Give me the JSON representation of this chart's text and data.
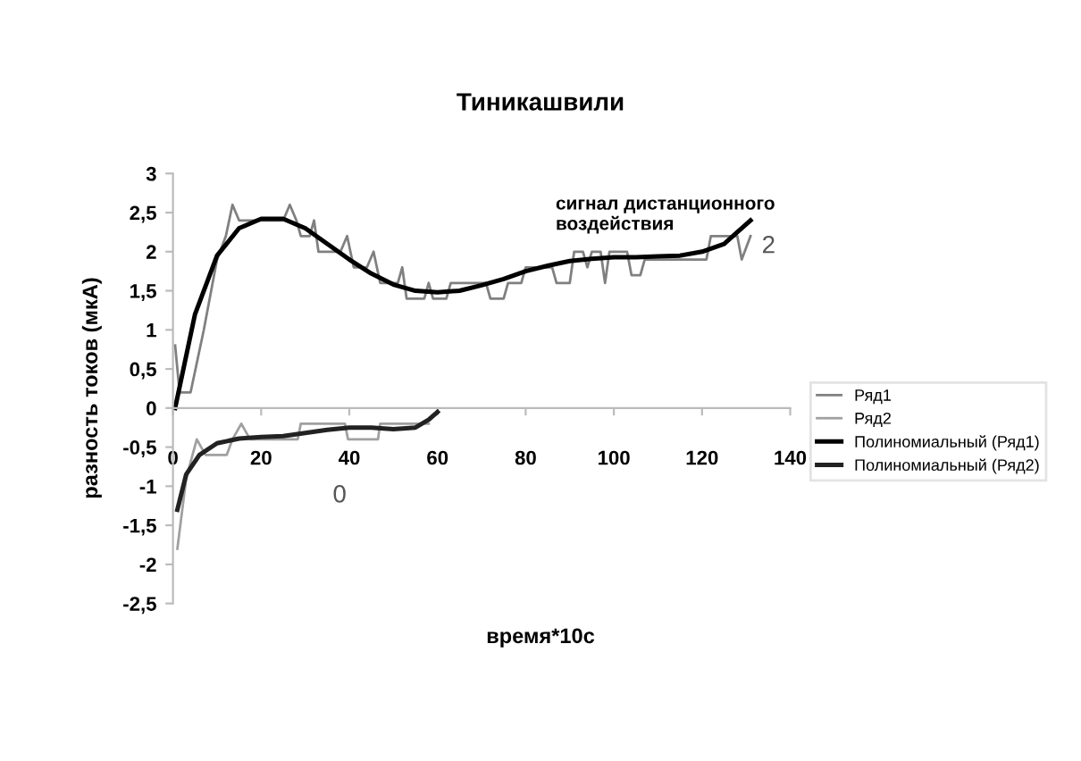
{
  "chart_data": {
    "type": "line",
    "title": "Тиникашвили",
    "xlabel": "время*10с",
    "ylabel": "разность токов (мкА)",
    "xlim": [
      0,
      140
    ],
    "xticks": [
      0,
      20,
      40,
      60,
      80,
      100,
      120,
      140
    ],
    "ylim": [
      -2.5,
      3
    ],
    "yticks": [
      {
        "value": -2.5,
        "label": "-2,5"
      },
      {
        "value": -2,
        "label": "-2"
      },
      {
        "value": -1.5,
        "label": "-1,5"
      },
      {
        "value": -1,
        "label": "-1"
      },
      {
        "value": -0.5,
        "label": "-0,5"
      },
      0,
      {
        "value": 0.5,
        "label": "0,5"
      },
      1,
      {
        "value": 1.5,
        "label": "1,5"
      },
      2,
      {
        "value": 2.5,
        "label": "2,5"
      },
      3
    ],
    "grid": false,
    "legend": "right",
    "marker": "none",
    "line_style": "solid",
    "annotations": [
      "сигнал дистанционного\nвоздействия",
      "2",
      "0"
    ],
    "series": [
      {
        "name": "Ряд1",
        "color": "#808080",
        "x": [
          0.5,
          1.5,
          4,
          7,
          10,
          12,
          13.5,
          15,
          25,
          26.5,
          28,
          29,
          31,
          32,
          33,
          38,
          39.5,
          41,
          44,
          45.5,
          47,
          51,
          52,
          53,
          57,
          58,
          59,
          62,
          63,
          71,
          72,
          75,
          76,
          79,
          80,
          86,
          87,
          90,
          91,
          93,
          94,
          95,
          97,
          98,
          99,
          103,
          104,
          106,
          107,
          121,
          122,
          128,
          129,
          131
        ],
        "values": [
          0.8,
          0.2,
          0.2,
          1.0,
          1.9,
          2.2,
          2.6,
          2.4,
          2.4,
          2.6,
          2.4,
          2.2,
          2.2,
          2.4,
          2.0,
          2.0,
          2.2,
          1.8,
          1.8,
          2.0,
          1.6,
          1.6,
          1.8,
          1.4,
          1.4,
          1.6,
          1.4,
          1.4,
          1.6,
          1.6,
          1.4,
          1.4,
          1.6,
          1.6,
          1.8,
          1.8,
          1.6,
          1.6,
          2.0,
          2.0,
          1.8,
          2.0,
          2.0,
          1.6,
          2.0,
          2.0,
          1.7,
          1.7,
          1.9,
          1.9,
          2.2,
          2.2,
          1.9,
          2.2
        ]
      },
      {
        "name": "Ряд2",
        "color": "#a0a0a0",
        "x": [
          1,
          3,
          5.4,
          7.4,
          12.2,
          13.5,
          15.5,
          17.5,
          28.3,
          29,
          39,
          39.7,
          46.5,
          47,
          58
        ],
        "values": [
          -1.8,
          -0.9,
          -0.4,
          -0.6,
          -0.6,
          -0.4,
          -0.2,
          -0.4,
          -0.4,
          -0.2,
          -0.2,
          -0.4,
          -0.4,
          -0.2,
          -0.2
        ]
      },
      {
        "name": "Полиномиальный (Ряд1)",
        "color": "#000000",
        "x": [
          0.5,
          5,
          10,
          15,
          20,
          25,
          30,
          35,
          40,
          45,
          50,
          55,
          60,
          65,
          70,
          75,
          80,
          85,
          90,
          95,
          100,
          105,
          110,
          115,
          120,
          125,
          128,
          131
        ],
        "values": [
          0,
          1.2,
          1.95,
          2.3,
          2.42,
          2.42,
          2.3,
          2.1,
          1.9,
          1.72,
          1.58,
          1.5,
          1.48,
          1.5,
          1.57,
          1.65,
          1.75,
          1.82,
          1.88,
          1.91,
          1.93,
          1.93,
          1.94,
          1.95,
          2.0,
          2.1,
          2.25,
          2.4
        ]
      },
      {
        "name": "Полиномиальный (Ряд2)",
        "color": "#222222",
        "x": [
          1,
          3,
          6,
          10,
          15,
          20,
          25,
          30,
          35,
          40,
          45,
          50,
          55,
          58,
          60
        ],
        "values": [
          -1.3,
          -0.85,
          -0.6,
          -0.45,
          -0.39,
          -0.37,
          -0.36,
          -0.32,
          -0.28,
          -0.25,
          -0.25,
          -0.27,
          -0.25,
          -0.15,
          -0.05
        ]
      }
    ]
  }
}
